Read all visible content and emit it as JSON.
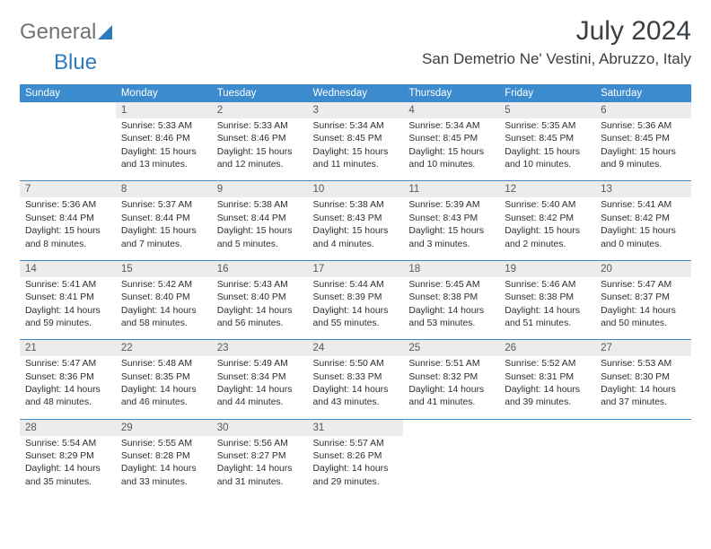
{
  "brand": {
    "text1": "General",
    "text2": "Blue"
  },
  "title": "July 2024",
  "location": "San Demetrio Ne' Vestini, Abruzzo, Italy",
  "dow": [
    "Sunday",
    "Monday",
    "Tuesday",
    "Wednesday",
    "Thursday",
    "Friday",
    "Saturday"
  ],
  "colors": {
    "header_bg": "#3b8bce",
    "daynum_bg": "#ececec",
    "text": "#2e2e2e",
    "title": "#3a3f44"
  },
  "weeks": [
    [
      null,
      {
        "n": "1",
        "sr": "5:33 AM",
        "ss": "8:46 PM",
        "dl": "15 hours and 13 minutes."
      },
      {
        "n": "2",
        "sr": "5:33 AM",
        "ss": "8:46 PM",
        "dl": "15 hours and 12 minutes."
      },
      {
        "n": "3",
        "sr": "5:34 AM",
        "ss": "8:45 PM",
        "dl": "15 hours and 11 minutes."
      },
      {
        "n": "4",
        "sr": "5:34 AM",
        "ss": "8:45 PM",
        "dl": "15 hours and 10 minutes."
      },
      {
        "n": "5",
        "sr": "5:35 AM",
        "ss": "8:45 PM",
        "dl": "15 hours and 10 minutes."
      },
      {
        "n": "6",
        "sr": "5:36 AM",
        "ss": "8:45 PM",
        "dl": "15 hours and 9 minutes."
      }
    ],
    [
      {
        "n": "7",
        "sr": "5:36 AM",
        "ss": "8:44 PM",
        "dl": "15 hours and 8 minutes."
      },
      {
        "n": "8",
        "sr": "5:37 AM",
        "ss": "8:44 PM",
        "dl": "15 hours and 7 minutes."
      },
      {
        "n": "9",
        "sr": "5:38 AM",
        "ss": "8:44 PM",
        "dl": "15 hours and 5 minutes."
      },
      {
        "n": "10",
        "sr": "5:38 AM",
        "ss": "8:43 PM",
        "dl": "15 hours and 4 minutes."
      },
      {
        "n": "11",
        "sr": "5:39 AM",
        "ss": "8:43 PM",
        "dl": "15 hours and 3 minutes."
      },
      {
        "n": "12",
        "sr": "5:40 AM",
        "ss": "8:42 PM",
        "dl": "15 hours and 2 minutes."
      },
      {
        "n": "13",
        "sr": "5:41 AM",
        "ss": "8:42 PM",
        "dl": "15 hours and 0 minutes."
      }
    ],
    [
      {
        "n": "14",
        "sr": "5:41 AM",
        "ss": "8:41 PM",
        "dl": "14 hours and 59 minutes."
      },
      {
        "n": "15",
        "sr": "5:42 AM",
        "ss": "8:40 PM",
        "dl": "14 hours and 58 minutes."
      },
      {
        "n": "16",
        "sr": "5:43 AM",
        "ss": "8:40 PM",
        "dl": "14 hours and 56 minutes."
      },
      {
        "n": "17",
        "sr": "5:44 AM",
        "ss": "8:39 PM",
        "dl": "14 hours and 55 minutes."
      },
      {
        "n": "18",
        "sr": "5:45 AM",
        "ss": "8:38 PM",
        "dl": "14 hours and 53 minutes."
      },
      {
        "n": "19",
        "sr": "5:46 AM",
        "ss": "8:38 PM",
        "dl": "14 hours and 51 minutes."
      },
      {
        "n": "20",
        "sr": "5:47 AM",
        "ss": "8:37 PM",
        "dl": "14 hours and 50 minutes."
      }
    ],
    [
      {
        "n": "21",
        "sr": "5:47 AM",
        "ss": "8:36 PM",
        "dl": "14 hours and 48 minutes."
      },
      {
        "n": "22",
        "sr": "5:48 AM",
        "ss": "8:35 PM",
        "dl": "14 hours and 46 minutes."
      },
      {
        "n": "23",
        "sr": "5:49 AM",
        "ss": "8:34 PM",
        "dl": "14 hours and 44 minutes."
      },
      {
        "n": "24",
        "sr": "5:50 AM",
        "ss": "8:33 PM",
        "dl": "14 hours and 43 minutes."
      },
      {
        "n": "25",
        "sr": "5:51 AM",
        "ss": "8:32 PM",
        "dl": "14 hours and 41 minutes."
      },
      {
        "n": "26",
        "sr": "5:52 AM",
        "ss": "8:31 PM",
        "dl": "14 hours and 39 minutes."
      },
      {
        "n": "27",
        "sr": "5:53 AM",
        "ss": "8:30 PM",
        "dl": "14 hours and 37 minutes."
      }
    ],
    [
      {
        "n": "28",
        "sr": "5:54 AM",
        "ss": "8:29 PM",
        "dl": "14 hours and 35 minutes."
      },
      {
        "n": "29",
        "sr": "5:55 AM",
        "ss": "8:28 PM",
        "dl": "14 hours and 33 minutes."
      },
      {
        "n": "30",
        "sr": "5:56 AM",
        "ss": "8:27 PM",
        "dl": "14 hours and 31 minutes."
      },
      {
        "n": "31",
        "sr": "5:57 AM",
        "ss": "8:26 PM",
        "dl": "14 hours and 29 minutes."
      },
      null,
      null,
      null
    ]
  ],
  "labels": {
    "sunrise": "Sunrise: ",
    "sunset": "Sunset: ",
    "daylight": "Daylight: "
  }
}
